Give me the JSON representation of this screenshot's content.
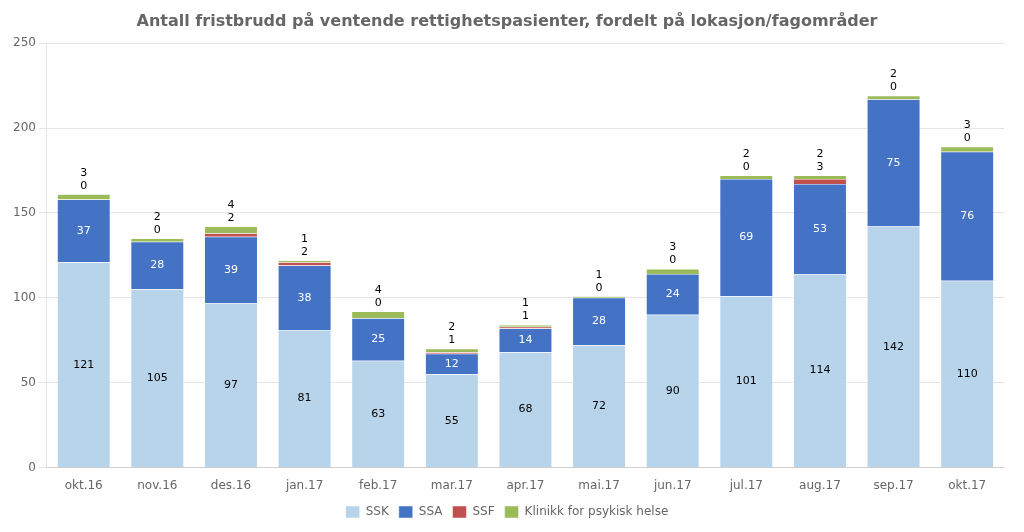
{
  "chart_data": {
    "type": "bar",
    "title": "Antall fristbrudd på ventende rettighetspasienter, fordelt på lokasjon/fagområder",
    "categories": [
      "okt.16",
      "nov.16",
      "des.16",
      "jan.17",
      "feb.17",
      "mar.17",
      "apr.17",
      "mai.17",
      "jun.17",
      "jul.17",
      "aug.17",
      "sep.17",
      "okt.17"
    ],
    "series": [
      {
        "name": "SSK",
        "color": "#b8d4ea",
        "values": [
          121,
          105,
          97,
          81,
          63,
          55,
          68,
          72,
          90,
          101,
          114,
          142,
          110
        ]
      },
      {
        "name": "SSA",
        "color": "#4472c4",
        "values": [
          37,
          28,
          39,
          38,
          25,
          12,
          14,
          28,
          24,
          69,
          53,
          75,
          76
        ]
      },
      {
        "name": "SSF",
        "color": "#c0504d",
        "values": [
          0,
          0,
          2,
          2,
          0,
          1,
          1,
          0,
          0,
          0,
          3,
          0,
          0
        ]
      },
      {
        "name": "Klinikk for psykisk helse",
        "color": "#9bbb59",
        "values": [
          3,
          2,
          4,
          1,
          4,
          2,
          1,
          1,
          3,
          2,
          2,
          2,
          3
        ]
      }
    ],
    "stacked": true,
    "data_labels": true,
    "ylim": [
      0,
      250
    ],
    "yticks": [
      0,
      50,
      100,
      150,
      200,
      250
    ],
    "grid": true,
    "legend": "bottom"
  }
}
